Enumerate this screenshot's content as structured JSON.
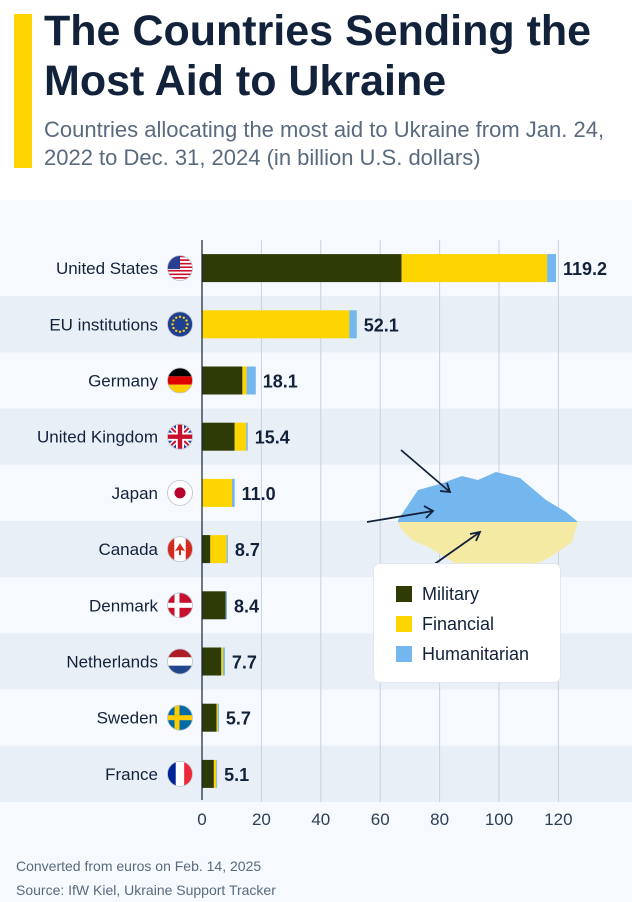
{
  "header": {
    "title": "The Countries Sending the Most Aid to Ukraine",
    "subtitle": "Countries allocating the most aid to Ukraine from Jan. 24, 2022 to Dec. 31, 2024 (in billion U.S. dollars)"
  },
  "colors": {
    "military": "#2e3b06",
    "financial": "#ffd500",
    "humanitarian": "#74b6ee",
    "accent": "#ffd500",
    "title": "#13223b"
  },
  "legend": {
    "military": "Military",
    "financial": "Financial",
    "humanitarian": "Humanitarian"
  },
  "footer": {
    "note": "Converted from euros on Feb. 14, 2025",
    "source": "Source: IfW Kiel, Ukraine Support Tracker"
  },
  "chart_data": {
    "type": "bar",
    "orientation": "horizontal",
    "stacked": true,
    "categories": [
      "United States",
      "EU institutions",
      "Germany",
      "United Kingdom",
      "Japan",
      "Canada",
      "Denmark",
      "Netherlands",
      "Sweden",
      "France"
    ],
    "flags": [
      "us-flag-icon",
      "eu-flag-icon",
      "germany-flag-icon",
      "uk-flag-icon",
      "japan-flag-icon",
      "canada-flag-icon",
      "denmark-flag-icon",
      "netherlands-flag-icon",
      "sweden-flag-icon",
      "france-flag-icon"
    ],
    "series": [
      {
        "name": "Military",
        "values": [
          67.2,
          0,
          13.6,
          11.0,
          0.1,
          2.8,
          8.0,
          6.5,
          4.9,
          4.0
        ]
      },
      {
        "name": "Financial",
        "values": [
          49.0,
          49.6,
          1.4,
          3.9,
          10.0,
          5.5,
          0,
          0.6,
          0.4,
          0.8
        ]
      },
      {
        "name": "Humanitarian",
        "values": [
          3.0,
          2.5,
          3.1,
          0.5,
          0.9,
          0.4,
          0.4,
          0.6,
          0.4,
          0.3
        ]
      }
    ],
    "totals": [
      "119.2",
      "52.1",
      "18.1",
      "15.4",
      "11.0",
      "8.7",
      "8.4",
      "7.7",
      "5.7",
      "5.1"
    ],
    "xlim": [
      0,
      125
    ],
    "xticks": [
      0,
      20,
      40,
      60,
      80,
      100,
      120
    ],
    "grid": true,
    "legend_position": "bottom-right"
  }
}
